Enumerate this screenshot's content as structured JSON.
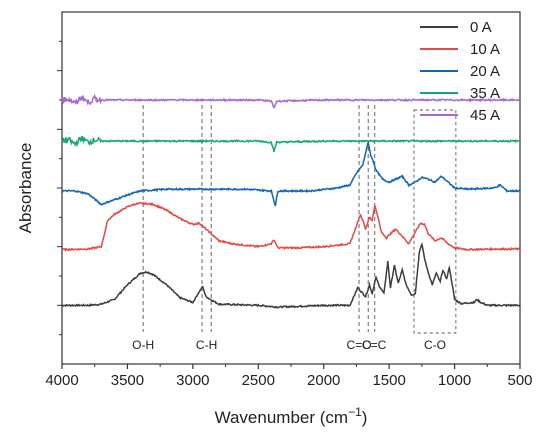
{
  "chart_data": {
    "type": "line",
    "xlabel": "Wavenumber (cm",
    "xlabel_sup": "−1",
    "xlabel_end": ")",
    "ylabel": "Absorbance",
    "xlim": [
      4000,
      500
    ],
    "x_reversed": true,
    "ylim": [
      0,
      6
    ],
    "xticks": [
      4000,
      3500,
      3000,
      2500,
      2000,
      1500,
      1000,
      500
    ],
    "legend_position": "top-right",
    "series": [
      {
        "name": "0 A",
        "color": "#3d3d3d",
        "points": [
          [
            4000,
            1.0
          ],
          [
            3800,
            1.0
          ],
          [
            3700,
            1.02
          ],
          [
            3600,
            1.1
          ],
          [
            3500,
            1.35
          ],
          [
            3400,
            1.55
          ],
          [
            3350,
            1.57
          ],
          [
            3300,
            1.52
          ],
          [
            3200,
            1.35
          ],
          [
            3100,
            1.13
          ],
          [
            3000,
            1.05
          ],
          [
            2960,
            1.2
          ],
          [
            2925,
            1.32
          ],
          [
            2900,
            1.15
          ],
          [
            2850,
            1.08
          ],
          [
            2800,
            1.02
          ],
          [
            2500,
            1.0
          ],
          [
            2350,
            0.97
          ],
          [
            2000,
            1.0
          ],
          [
            1800,
            1.0
          ],
          [
            1740,
            1.3
          ],
          [
            1720,
            1.25
          ],
          [
            1680,
            1.15
          ],
          [
            1650,
            1.35
          ],
          [
            1630,
            1.2
          ],
          [
            1600,
            1.48
          ],
          [
            1580,
            1.35
          ],
          [
            1540,
            1.2
          ],
          [
            1510,
            1.75
          ],
          [
            1490,
            1.3
          ],
          [
            1460,
            1.68
          ],
          [
            1430,
            1.38
          ],
          [
            1400,
            1.6
          ],
          [
            1370,
            1.35
          ],
          [
            1330,
            1.18
          ],
          [
            1300,
            1.2
          ],
          [
            1270,
            1.9
          ],
          [
            1250,
            2.05
          ],
          [
            1230,
            1.8
          ],
          [
            1200,
            1.55
          ],
          [
            1170,
            1.35
          ],
          [
            1140,
            1.55
          ],
          [
            1110,
            1.4
          ],
          [
            1090,
            1.6
          ],
          [
            1060,
            1.45
          ],
          [
            1040,
            1.65
          ],
          [
            1020,
            1.38
          ],
          [
            1000,
            1.1
          ],
          [
            950,
            1.03
          ],
          [
            850,
            1.05
          ],
          [
            830,
            1.1
          ],
          [
            800,
            1.05
          ],
          [
            750,
            1.0
          ],
          [
            500,
            1.0
          ]
        ]
      },
      {
        "name": "10 A",
        "color": "#e34a4a",
        "points": [
          [
            4000,
            1.95
          ],
          [
            3800,
            1.96
          ],
          [
            3700,
            2.0
          ],
          [
            3650,
            2.45
          ],
          [
            3600,
            2.55
          ],
          [
            3500,
            2.68
          ],
          [
            3450,
            2.72
          ],
          [
            3400,
            2.74
          ],
          [
            3300,
            2.72
          ],
          [
            3200,
            2.62
          ],
          [
            3100,
            2.48
          ],
          [
            3000,
            2.38
          ],
          [
            2950,
            2.4
          ],
          [
            2900,
            2.3
          ],
          [
            2850,
            2.2
          ],
          [
            2800,
            2.1
          ],
          [
            2700,
            2.05
          ],
          [
            2500,
            2.0
          ],
          [
            2400,
            2.05
          ],
          [
            2380,
            2.12
          ],
          [
            2350,
            1.98
          ],
          [
            2200,
            1.98
          ],
          [
            2000,
            2.0
          ],
          [
            1800,
            2.05
          ],
          [
            1750,
            2.35
          ],
          [
            1720,
            2.55
          ],
          [
            1700,
            2.45
          ],
          [
            1680,
            2.3
          ],
          [
            1650,
            2.5
          ],
          [
            1630,
            2.45
          ],
          [
            1610,
            2.7
          ],
          [
            1590,
            2.55
          ],
          [
            1560,
            2.25
          ],
          [
            1520,
            2.15
          ],
          [
            1500,
            2.2
          ],
          [
            1450,
            2.3
          ],
          [
            1400,
            2.18
          ],
          [
            1350,
            2.05
          ],
          [
            1300,
            2.25
          ],
          [
            1260,
            2.4
          ],
          [
            1230,
            2.38
          ],
          [
            1200,
            2.22
          ],
          [
            1150,
            2.1
          ],
          [
            1100,
            2.15
          ],
          [
            1050,
            2.05
          ],
          [
            1000,
            1.98
          ],
          [
            900,
            1.95
          ],
          [
            700,
            1.96
          ],
          [
            500,
            1.96
          ]
        ]
      },
      {
        "name": "20 A",
        "color": "#1764ad",
        "points": [
          [
            4000,
            2.95
          ],
          [
            3900,
            2.95
          ],
          [
            3800,
            2.9
          ],
          [
            3700,
            2.72
          ],
          [
            3600,
            2.8
          ],
          [
            3500,
            2.88
          ],
          [
            3400,
            2.95
          ],
          [
            3200,
            2.98
          ],
          [
            3000,
            2.98
          ],
          [
            2800,
            2.98
          ],
          [
            2600,
            2.98
          ],
          [
            2400,
            2.95
          ],
          [
            2370,
            2.7
          ],
          [
            2350,
            2.95
          ],
          [
            2100,
            2.95
          ],
          [
            1900,
            3.0
          ],
          [
            1800,
            3.05
          ],
          [
            1750,
            3.25
          ],
          [
            1700,
            3.4
          ],
          [
            1680,
            3.6
          ],
          [
            1660,
            3.78
          ],
          [
            1640,
            3.55
          ],
          [
            1620,
            3.45
          ],
          [
            1600,
            3.3
          ],
          [
            1550,
            3.15
          ],
          [
            1500,
            3.1
          ],
          [
            1450,
            3.15
          ],
          [
            1400,
            3.2
          ],
          [
            1350,
            3.05
          ],
          [
            1300,
            3.1
          ],
          [
            1250,
            3.18
          ],
          [
            1200,
            3.15
          ],
          [
            1150,
            3.1
          ],
          [
            1100,
            3.2
          ],
          [
            1050,
            3.1
          ],
          [
            1000,
            3.0
          ],
          [
            900,
            2.98
          ],
          [
            700,
            3.0
          ],
          [
            650,
            3.05
          ],
          [
            600,
            2.95
          ],
          [
            500,
            2.95
          ]
        ]
      },
      {
        "name": "35 A",
        "color": "#17a673",
        "points": [
          [
            4000,
            3.8
          ],
          [
            3950,
            3.82
          ],
          [
            3900,
            3.75
          ],
          [
            3850,
            3.85
          ],
          [
            3800,
            3.78
          ],
          [
            3750,
            3.82
          ],
          [
            3700,
            3.8
          ],
          [
            3500,
            3.8
          ],
          [
            3000,
            3.8
          ],
          [
            2500,
            3.8
          ],
          [
            2400,
            3.78
          ],
          [
            2380,
            3.62
          ],
          [
            2360,
            3.78
          ],
          [
            2000,
            3.8
          ],
          [
            1500,
            3.8
          ],
          [
            1000,
            3.8
          ],
          [
            500,
            3.8
          ]
        ]
      },
      {
        "name": "45 A",
        "color": "#a56ad0",
        "points": [
          [
            4000,
            4.5
          ],
          [
            3950,
            4.52
          ],
          [
            3900,
            4.44
          ],
          [
            3850,
            4.55
          ],
          [
            3800,
            4.46
          ],
          [
            3750,
            4.52
          ],
          [
            3700,
            4.5
          ],
          [
            3500,
            4.5
          ],
          [
            3000,
            4.5
          ],
          [
            2500,
            4.5
          ],
          [
            2400,
            4.48
          ],
          [
            2380,
            4.36
          ],
          [
            2360,
            4.48
          ],
          [
            2000,
            4.5
          ],
          [
            1500,
            4.5
          ],
          [
            1000,
            4.5
          ],
          [
            500,
            4.5
          ]
        ]
      }
    ],
    "band_markers": [
      {
        "label": "O-H",
        "lines": [
          3380
        ],
        "label_x": 3380
      },
      {
        "label": "C-H",
        "lines": [
          2930,
          2860
        ],
        "label_x": 2895
      },
      {
        "label": "C=O",
        "lines": [
          1730
        ],
        "label_x": 1730
      },
      {
        "label": "C=C",
        "lines": [
          1660,
          1610
        ],
        "label_x": 1615
      },
      {
        "label": "C-O",
        "lines": [],
        "label_x": 1150,
        "box": [
          1310,
          990
        ]
      }
    ]
  }
}
